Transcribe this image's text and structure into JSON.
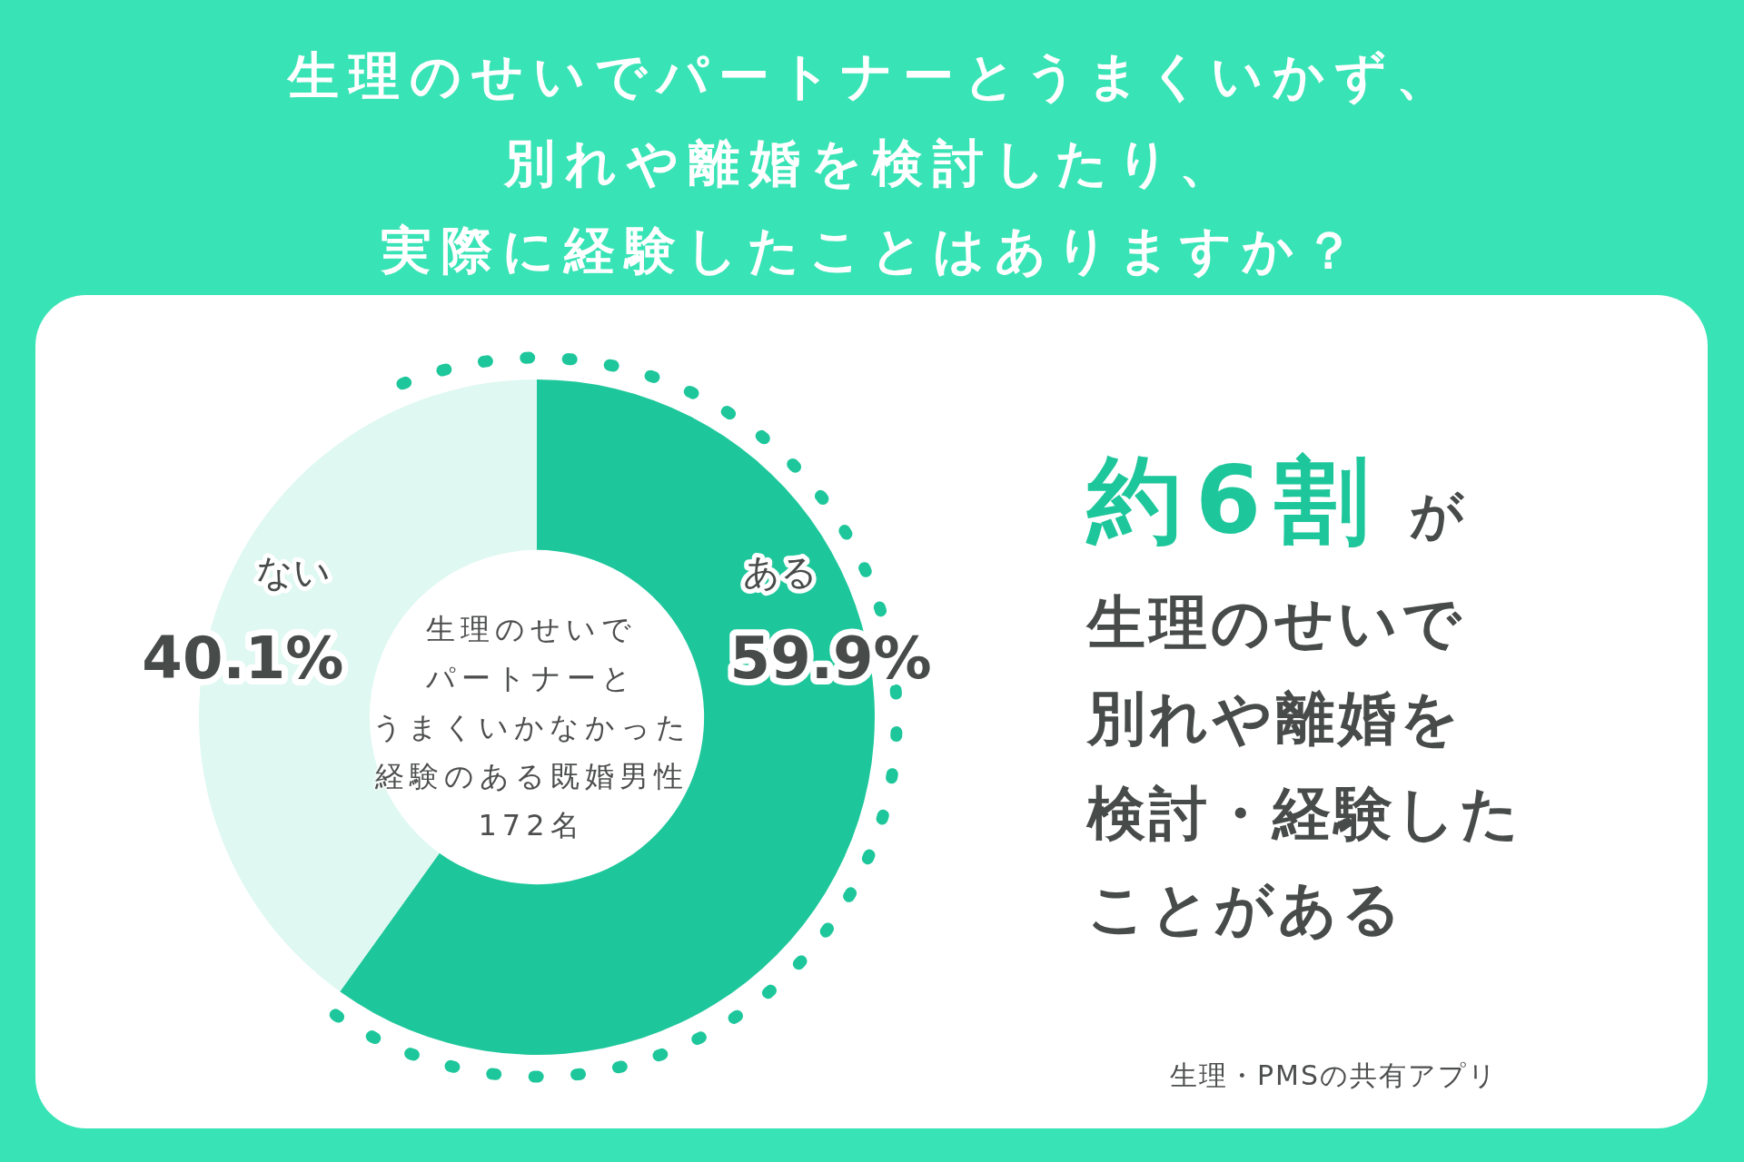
{
  "chart_data": {
    "type": "donut",
    "title": "生理のせいでパートナーとうまくいかず、別れや離婚を検討したり、実際に経験したことはありますか？",
    "categories": [
      "ある",
      "ない"
    ],
    "values": [
      59.9,
      40.1
    ],
    "colors": [
      "#1ec79b",
      "#dff8f1"
    ],
    "value_labels": [
      "59.9%",
      "40.1%"
    ],
    "annotations": [
      "生理のせいで",
      "パートナーと",
      "うまくいかなかった",
      "経験のある既婚男性",
      "172名",
      "約6割",
      "が",
      "生理のせいで",
      "別れや離婚を",
      "検討・経験した",
      "ことがある",
      "生理・PMSの共有アプリ"
    ]
  }
}
